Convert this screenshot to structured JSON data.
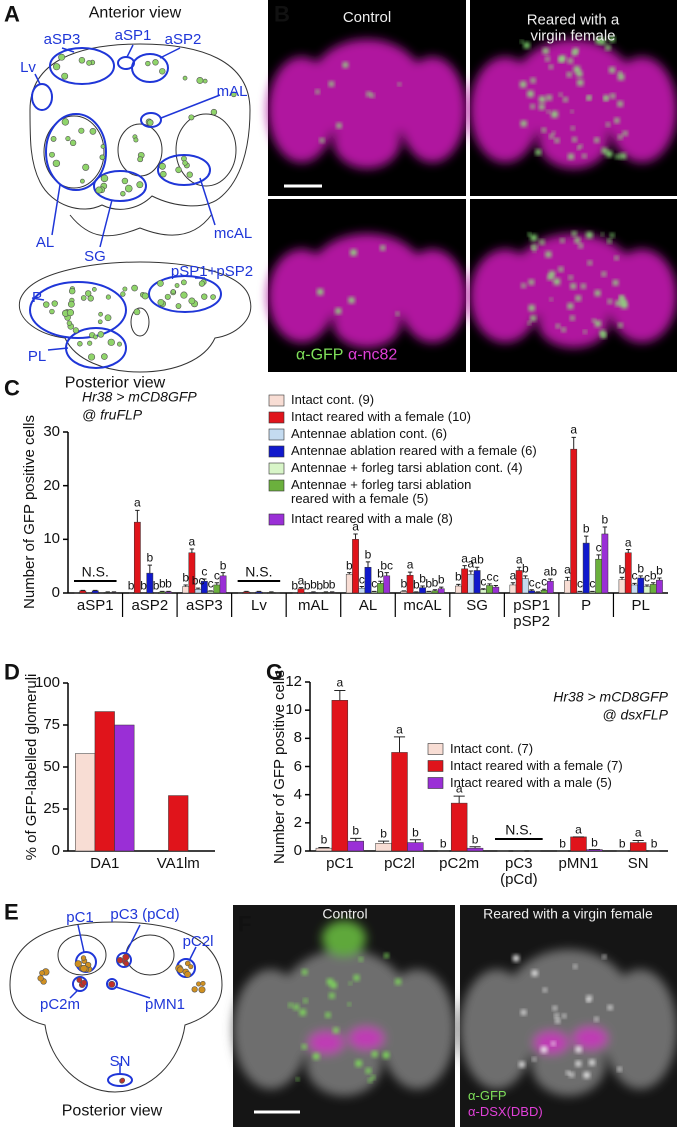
{
  "panel_a": {
    "letter": "A",
    "top_title": "Anterior view",
    "bottom_title": "Posterior view",
    "regions": [
      "aSP3",
      "aSP1",
      "aSP2",
      "Lv",
      "mAL",
      "AL",
      "SG",
      "mcAL",
      "pSP1+pSP2",
      "P",
      "PL"
    ]
  },
  "panel_b": {
    "letter": "B",
    "columns": [
      "Control",
      "Reared with a\nvirgin female"
    ],
    "stain_1": "α-GFP",
    "stain_2": "α-nc82"
  },
  "chart_data": [
    {
      "panel": "C",
      "type": "bar",
      "genotype": "Hr38 > mCD8GFP",
      "driver": "@ fruFLP",
      "y_label": "Number of GFP positive cells",
      "categories": [
        "aSP1",
        "aSP2",
        "aSP3",
        "Lv",
        "mAL",
        "AL",
        "mcAL",
        "SG",
        "pSP1\npSP2",
        "P",
        "PL"
      ],
      "group_annotations": [
        "N.S.",
        null,
        null,
        "N.S.",
        null,
        null,
        null,
        null,
        null,
        null,
        null
      ],
      "category_dividers": true,
      "legend": "upper center",
      "ylim": [
        0,
        30
      ],
      "yticks": [
        0,
        10,
        20,
        30
      ],
      "series": [
        {
          "name": "Intact cont. (9)",
          "color": "#f8ddd4",
          "values": [
            0,
            0,
            1.2,
            0,
            0,
            3.5,
            0.3,
            1.3,
            1.5,
            2.3,
            2.5
          ],
          "errors": [
            0,
            0,
            0.3,
            0,
            0,
            0.3,
            0.1,
            0.3,
            0.4,
            0.6,
            0.4
          ],
          "letters": [
            null,
            "b",
            "b",
            null,
            "b",
            "b",
            "b",
            "b",
            "a",
            "a",
            "b"
          ]
        },
        {
          "name": "Intact reared with a female (10)",
          "color": "#e0141b",
          "values": [
            0.4,
            13.2,
            7.5,
            0.2,
            0.8,
            10,
            3.3,
            4.5,
            4.2,
            26.8,
            7.5
          ],
          "errors": [
            0.1,
            2.2,
            0.7,
            0.1,
            0.2,
            1.0,
            0.6,
            0.6,
            0.6,
            2.2,
            0.6
          ],
          "letters": [
            null,
            "a",
            "a",
            null,
            "a",
            "a",
            "a",
            "a",
            "a",
            "a",
            "a"
          ]
        },
        {
          "name": "Antennae ablation cont. (6)",
          "color": "#c4dbf0",
          "values": [
            0,
            0,
            0.7,
            0,
            0,
            0.9,
            0.1,
            3.5,
            2.7,
            0.2,
            1.5
          ],
          "errors": [
            0,
            0,
            0.2,
            0,
            0,
            0.3,
            0.1,
            0.6,
            0.5,
            0.1,
            0.3
          ],
          "letters": [
            null,
            "b",
            "bc",
            null,
            "b",
            "c",
            "b",
            "a",
            "b",
            "c",
            "c"
          ]
        },
        {
          "name": "Antennae ablation reared with a female (6)",
          "color": "#1119cc",
          "values": [
            0.4,
            3.7,
            2.2,
            0.2,
            0.1,
            4.8,
            1.0,
            4.2,
            0.4,
            9.3,
            2.8
          ],
          "errors": [
            0.1,
            1.5,
            0.4,
            0.1,
            0.1,
            1.0,
            0.3,
            0.6,
            0.2,
            1.3,
            0.4
          ],
          "letters": [
            null,
            "b",
            "c",
            null,
            "b",
            "b",
            "b",
            "ab",
            "c",
            "b",
            "b"
          ]
        },
        {
          "name": "Antennae + forleg tarsi ablation cont. (4)",
          "color": "#d8f5c8",
          "values": [
            0,
            0,
            0.3,
            0,
            0,
            0.2,
            0.2,
            0.6,
            0.1,
            0.2,
            1.2
          ],
          "errors": [
            0,
            0,
            0.1,
            0,
            0,
            0.1,
            0.1,
            0.2,
            0.1,
            0.1,
            0.3
          ],
          "letters": [
            null,
            "b",
            "c",
            null,
            "b",
            "c",
            "b",
            "c",
            "c",
            "c",
            "c"
          ]
        },
        {
          "name": "Antennae + forleg tarsi ablation\nreared with a female (5)",
          "color": "#6bb03d",
          "values": [
            0.1,
            0.2,
            1.5,
            0.1,
            0.1,
            1.8,
            0.4,
            1.4,
            0.5,
            6.3,
            1.6
          ],
          "errors": [
            0.1,
            0.1,
            0.4,
            0.1,
            0.1,
            0.4,
            0.2,
            0.3,
            0.2,
            0.8,
            0.3
          ],
          "letters": [
            null,
            "b",
            "c",
            null,
            "b",
            "b",
            "b",
            "c",
            "c",
            "c",
            "b"
          ]
        },
        {
          "name": "Intact reared with a male (8)",
          "color": "#9a2fd6",
          "values": [
            0.1,
            0.2,
            3.2,
            0,
            0.1,
            3.2,
            0.8,
            1.1,
            2.2,
            11,
            2.4
          ],
          "errors": [
            0.1,
            0.1,
            0.6,
            0,
            0.1,
            0.6,
            0.3,
            0.3,
            0.4,
            1.3,
            0.4
          ],
          "letters": [
            null,
            "b",
            "b",
            null,
            "b",
            "bc",
            "b",
            "c",
            "ab",
            "b",
            "b"
          ]
        }
      ]
    },
    {
      "panel": "D",
      "type": "bar",
      "y_label": "% of GFP-labelled glomeruli",
      "categories": [
        "DA1",
        "VA1lm"
      ],
      "ylim": [
        0,
        100
      ],
      "yticks": [
        0,
        25,
        50,
        75,
        100
      ],
      "series": [
        {
          "color": "#f8ddd4",
          "values": [
            58,
            0
          ]
        },
        {
          "color": "#e0141b",
          "values": [
            83,
            33
          ]
        },
        {
          "color": "#9a2fd6",
          "values": [
            75,
            0
          ]
        }
      ]
    },
    {
      "panel": "G",
      "type": "bar",
      "genotype": "Hr38 > mCD8GFP",
      "driver": "@ dsxFLP",
      "y_label": "Number of GFP positive cells",
      "categories": [
        "pC1",
        "pC2l",
        "pC2m",
        "pC3\n(pCd)",
        "pMN1",
        "SN"
      ],
      "group_annotations": [
        null,
        null,
        null,
        "N.S.",
        null,
        null
      ],
      "legend": "center right",
      "ylim": [
        0,
        12
      ],
      "yticks": [
        0,
        2,
        4,
        6,
        8,
        10,
        12
      ],
      "series": [
        {
          "name": "Intact cont. (7)",
          "color": "#f8ddd4",
          "values": [
            0.2,
            0.55,
            0,
            0,
            0,
            0
          ],
          "errors": [
            0.05,
            0.15,
            0,
            0,
            0,
            0
          ],
          "letters": [
            "b",
            "b",
            "b",
            null,
            "b",
            "b"
          ]
        },
        {
          "name": "Intact reared with a female (7)",
          "color": "#e0141b",
          "values": [
            10.7,
            7.0,
            3.4,
            0,
            1.0,
            0.6
          ],
          "errors": [
            0.7,
            1.1,
            0.5,
            0,
            0,
            0.15
          ],
          "letters": [
            "a",
            "a",
            "a",
            null,
            "a",
            "a"
          ]
        },
        {
          "name": "Intact reared with a male (5)",
          "color": "#9a2fd6",
          "values": [
            0.7,
            0.6,
            0.2,
            0,
            0.1,
            0
          ],
          "errors": [
            0.2,
            0.2,
            0.1,
            0,
            0,
            0
          ],
          "letters": [
            "b",
            "b",
            "b",
            null,
            "b",
            "b"
          ]
        }
      ]
    }
  ],
  "panel_e": {
    "letter": "E",
    "regions": [
      "pC1",
      "pC3 (pCd)",
      "pC2l",
      "pC2m",
      "pMN1",
      "SN"
    ],
    "bottom_title": "Posterior view"
  },
  "panel_f": {
    "letter": "F",
    "columns": [
      "Control",
      "Reared with a virgin female"
    ],
    "stain_1": "α-GFP",
    "stain_2": "α-DSX(DBD)"
  }
}
